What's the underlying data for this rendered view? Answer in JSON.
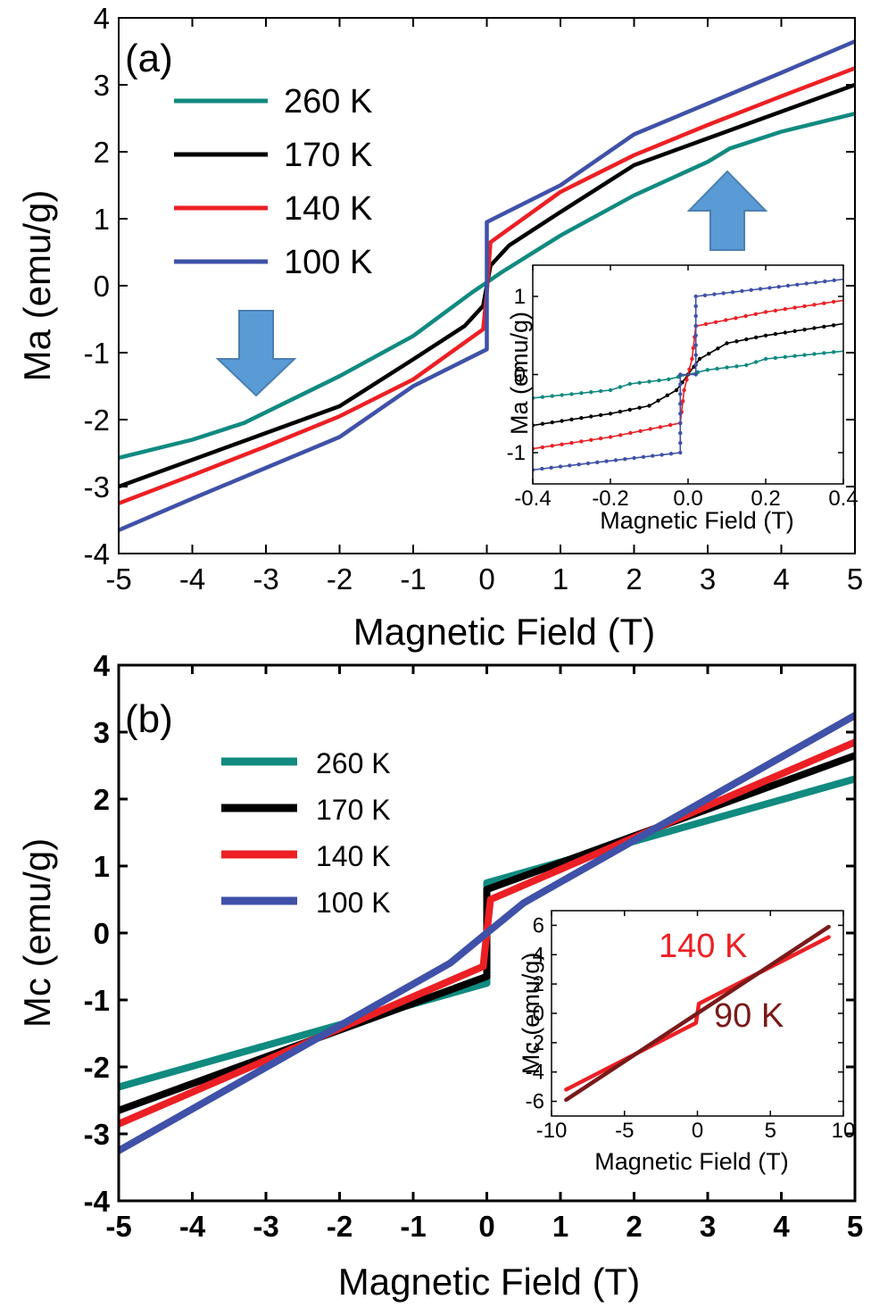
{
  "colors": {
    "k260": "#118a80",
    "k170": "#000000",
    "k140": "#ec2024",
    "k100": "#3f51a8",
    "k90": "#7a1a1a",
    "arrow_fill": "#5b9bd5",
    "arrow_stroke": "#4a7fb2"
  },
  "chart_data": [
    {
      "id": "panel_a",
      "type": "line",
      "panel_label": "(a)",
      "xlabel": "Magnetic Field (T)",
      "ylabel": "Ma (emu/g)",
      "xlim": [
        -5,
        5
      ],
      "ylim": [
        -4,
        4
      ],
      "xticks": [
        "-5",
        "-4",
        "-3",
        "-2",
        "-1",
        "0",
        "1",
        "2",
        "3",
        "4",
        "5"
      ],
      "yticks": [
        "-4",
        "-3",
        "-2",
        "-1",
        "0",
        "1",
        "2",
        "3",
        "4"
      ],
      "legend": [
        {
          "label": "260 K",
          "color_key": "k260"
        },
        {
          "label": "170 K",
          "color_key": "k170"
        },
        {
          "label": "140 K",
          "color_key": "k140"
        },
        {
          "label": "100 K",
          "color_key": "k100"
        }
      ],
      "series": [
        {
          "name": "260 K",
          "color_key": "k260",
          "x": [
            -5,
            -4,
            -3.3,
            -2,
            -1,
            -0.2,
            0,
            0.2,
            1,
            2,
            3,
            3.3,
            4,
            5
          ],
          "y": [
            -2.57,
            -2.3,
            -2.05,
            -1.35,
            -0.75,
            -0.1,
            0.05,
            0.2,
            0.75,
            1.35,
            1.85,
            2.05,
            2.3,
            2.57
          ]
        },
        {
          "name": "170 K",
          "color_key": "k170",
          "x": [
            -5,
            -4,
            -3,
            -2,
            -1,
            -0.3,
            -0.05,
            0.05,
            0.3,
            1,
            2,
            3,
            4,
            5
          ],
          "y": [
            -3.0,
            -2.6,
            -2.2,
            -1.8,
            -1.1,
            -0.6,
            -0.3,
            0.3,
            0.6,
            1.1,
            1.8,
            2.2,
            2.6,
            3.0
          ]
        },
        {
          "name": "140 K",
          "color_key": "k140",
          "x": [
            -5,
            -4,
            -3,
            -2,
            -1,
            -0.05,
            0,
            0.05,
            1,
            2,
            3,
            4,
            5
          ],
          "y": [
            -3.25,
            -2.83,
            -2.4,
            -1.95,
            -1.4,
            -0.65,
            -0.1,
            0.65,
            1.4,
            1.95,
            2.4,
            2.83,
            3.25
          ]
        },
        {
          "name": "100 K",
          "color_key": "k100",
          "x": [
            -5,
            -4,
            -3,
            -2,
            -1,
            0,
            0,
            1,
            2,
            3,
            4,
            5
          ],
          "y": [
            -3.65,
            -3.18,
            -2.72,
            -2.26,
            -1.5,
            -0.95,
            0.95,
            1.5,
            2.26,
            2.72,
            3.18,
            3.65
          ]
        }
      ],
      "annotations": [
        "down arrow near x=-3.1",
        "up arrow near x=3.1"
      ]
    },
    {
      "id": "inset_a",
      "type": "line",
      "xlabel": "Magnetic Field (T)",
      "ylabel": "Ma (emu/g)",
      "xlim": [
        -0.4,
        0.4
      ],
      "ylim": [
        -1.4,
        1.4
      ],
      "xticks": [
        "-0.4",
        "-0.2",
        "0.0",
        "0.2",
        "0.4"
      ],
      "yticks": [
        "-1",
        "0",
        "1"
      ],
      "series": [
        {
          "name": "260 K",
          "color_key": "k260",
          "x": [
            -0.4,
            -0.2,
            -0.15,
            -0.05,
            0.05,
            0.15,
            0.2,
            0.4
          ],
          "y": [
            -0.3,
            -0.2,
            -0.12,
            -0.06,
            0.06,
            0.12,
            0.2,
            0.3
          ]
        },
        {
          "name": "170 K",
          "color_key": "k170",
          "x": [
            -0.4,
            -0.2,
            -0.1,
            -0.03,
            0,
            0.03,
            0.1,
            0.2,
            0.4
          ],
          "y": [
            -0.65,
            -0.5,
            -0.4,
            -0.2,
            0,
            0.2,
            0.4,
            0.5,
            0.65
          ]
        },
        {
          "name": "140 K",
          "color_key": "k140",
          "x": [
            -0.4,
            -0.2,
            -0.02,
            -0.01,
            0.01,
            0.02,
            0.2,
            0.4
          ],
          "y": [
            -0.95,
            -0.8,
            -0.62,
            -0.2,
            0.2,
            0.62,
            0.8,
            0.95
          ]
        },
        {
          "name": "100 K",
          "color_key": "k100",
          "x": [
            -0.4,
            -0.02,
            -0.02,
            0.02,
            0.02,
            0.4
          ],
          "y": [
            -1.22,
            -1.0,
            0.0,
            0.0,
            1.0,
            1.22
          ]
        }
      ]
    },
    {
      "id": "panel_b",
      "type": "line",
      "panel_label": "(b)",
      "xlabel": "Magnetic Field (T)",
      "ylabel": "Mc (emu/g)",
      "xlim": [
        -5,
        5
      ],
      "ylim": [
        -4,
        4
      ],
      "xticks": [
        "-5",
        "-4",
        "-3",
        "-2",
        "-1",
        "0",
        "1",
        "2",
        "3",
        "4",
        "5"
      ],
      "yticks": [
        "-4",
        "-3",
        "-2",
        "-1",
        "0",
        "1",
        "2",
        "3",
        "4"
      ],
      "legend": [
        {
          "label": "260 K",
          "color_key": "k260"
        },
        {
          "label": "170 K",
          "color_key": "k170"
        },
        {
          "label": "140 K",
          "color_key": "k140"
        },
        {
          "label": "100 K",
          "color_key": "k100"
        }
      ],
      "series": [
        {
          "name": "260 K",
          "color_key": "k260",
          "x": [
            -5,
            0,
            0,
            5
          ],
          "y": [
            -2.3,
            -0.75,
            0.75,
            2.3
          ]
        },
        {
          "name": "170 K",
          "color_key": "k170",
          "x": [
            -5,
            0,
            0,
            5
          ],
          "y": [
            -2.65,
            -0.65,
            0.65,
            2.65
          ]
        },
        {
          "name": "140 K",
          "color_key": "k140",
          "x": [
            -5,
            -0.05,
            0.05,
            5
          ],
          "y": [
            -2.85,
            -0.5,
            0.5,
            2.85
          ]
        },
        {
          "name": "100 K",
          "color_key": "k100",
          "x": [
            -5,
            -0.5,
            0,
            0.5,
            5
          ],
          "y": [
            -3.25,
            -0.45,
            0,
            0.45,
            3.25
          ]
        }
      ]
    },
    {
      "id": "inset_b",
      "type": "line",
      "xlabel": "Magnetic Field (T)",
      "ylabel": "Mc (emu/g)",
      "xlim": [
        -10,
        10
      ],
      "ylim": [
        -7,
        7
      ],
      "xticks": [
        "-10",
        "-5",
        "0",
        "5",
        "10"
      ],
      "yticks": [
        "-6",
        "-4",
        "-2",
        "0",
        "2",
        "4",
        "6"
      ],
      "labels": [
        {
          "text": "140 K",
          "color_key": "k140"
        },
        {
          "text": "90 K",
          "color_key": "k90"
        }
      ],
      "series": [
        {
          "name": "140 K",
          "color_key": "k140",
          "x": [
            -9,
            -0.1,
            0.1,
            9
          ],
          "y": [
            -5.2,
            -0.65,
            0.65,
            5.2
          ]
        },
        {
          "name": "90 K",
          "color_key": "k90",
          "x": [
            -9,
            9
          ],
          "y": [
            -5.9,
            5.9
          ]
        }
      ]
    }
  ]
}
